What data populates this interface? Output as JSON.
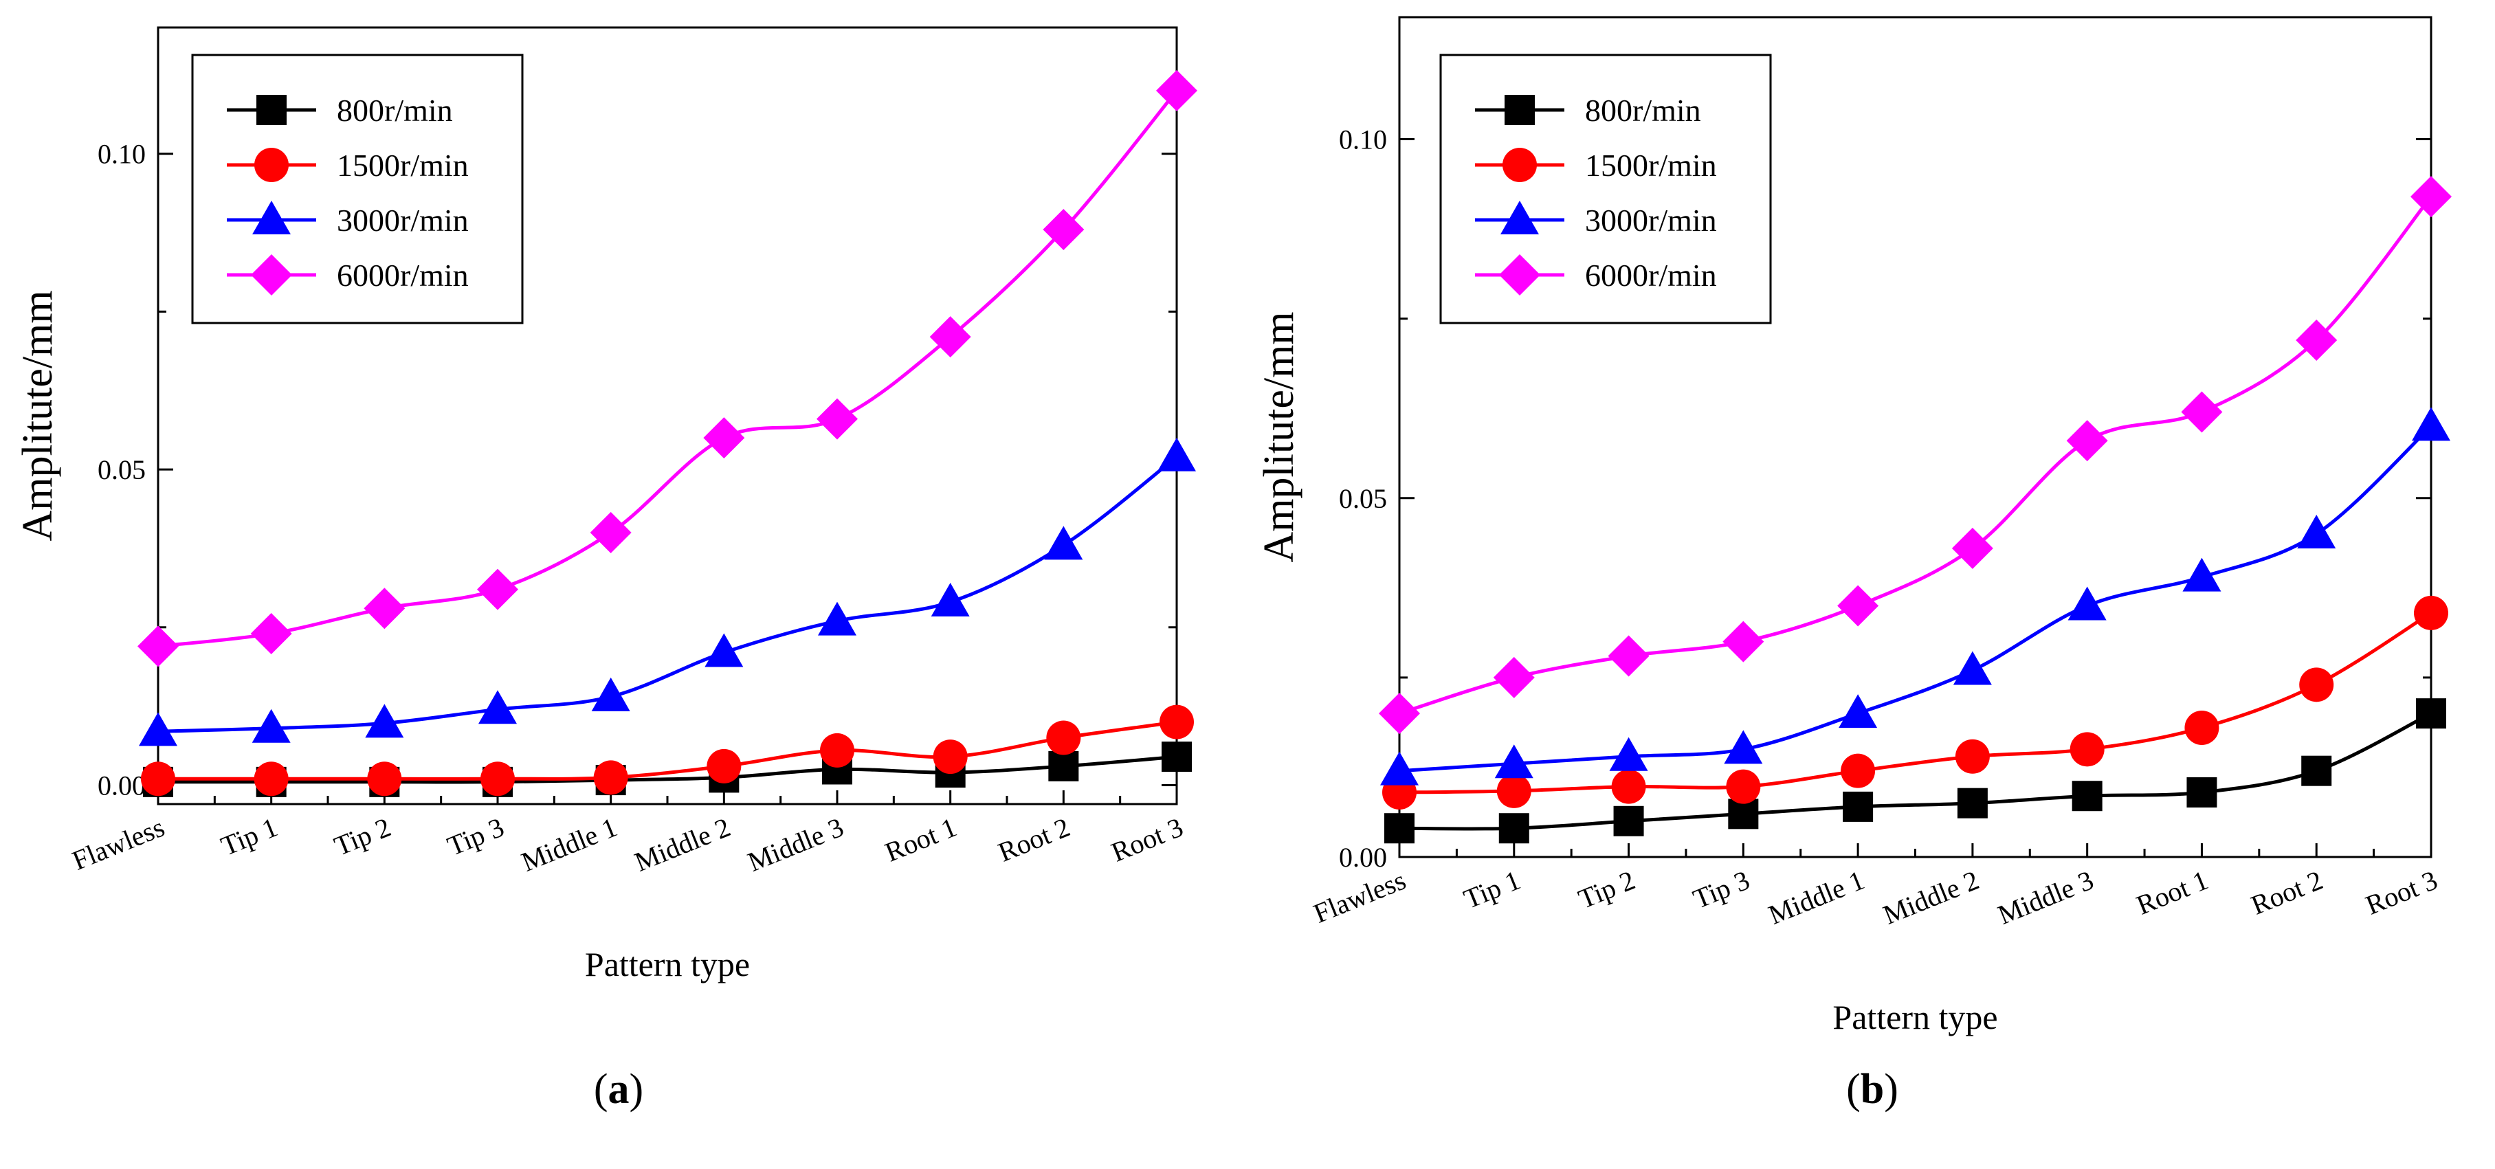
{
  "chart_data": [
    {
      "id": "a",
      "type": "line",
      "panel_label": "a",
      "xlabel": "Pattern type",
      "ylabel": "Amplitute/mm",
      "categories": [
        "Flawless",
        "Tip 1",
        "Tip 2",
        "Tip 3",
        "Middle 1",
        "Middle 2",
        "Middle 3",
        "Root 1",
        "Root 2",
        "Root 3"
      ],
      "ylim": [
        -0.003,
        0.12
      ],
      "yticks": [
        0.0,
        0.05,
        0.1
      ],
      "ytick_labels": [
        "0.00",
        "0.05",
        "0.10"
      ],
      "legend_position": "top-left",
      "series": [
        {
          "name": "800r/min",
          "color": "#000000",
          "marker": "square",
          "values": [
            0.0005,
            0.0005,
            0.0005,
            0.0005,
            0.0008,
            0.0012,
            0.0025,
            0.002,
            0.003,
            0.0045
          ]
        },
        {
          "name": "1500r/min",
          "color": "#ff0000",
          "marker": "circle",
          "values": [
            0.001,
            0.001,
            0.001,
            0.001,
            0.0012,
            0.003,
            0.0055,
            0.0045,
            0.0075,
            0.01
          ]
        },
        {
          "name": "3000r/min",
          "color": "#0000ff",
          "marker": "triangle",
          "values": [
            0.0085,
            0.009,
            0.0098,
            0.012,
            0.014,
            0.021,
            0.026,
            0.029,
            0.038,
            0.052
          ]
        },
        {
          "name": "6000r/min",
          "color": "#ff00ff",
          "marker": "diamond",
          "values": [
            0.022,
            0.024,
            0.028,
            0.031,
            0.04,
            0.055,
            0.058,
            0.071,
            0.088,
            0.11
          ]
        }
      ]
    },
    {
      "id": "b",
      "type": "line",
      "panel_label": "b",
      "xlabel": "Pattern type",
      "ylabel": "Amplitute/mm",
      "categories": [
        "Flawless",
        "Tip 1",
        "Tip 2",
        "Tip 3",
        "Middle 1",
        "Middle 2",
        "Middle 3",
        "Root 1",
        "Root 2",
        "Root 3"
      ],
      "ylim": [
        0.0,
        0.117
      ],
      "yticks": [
        0.0,
        0.05,
        0.1
      ],
      "ytick_labels": [
        "0.00",
        "0.05",
        "0.10"
      ],
      "legend_position": "top-left",
      "series": [
        {
          "name": "800r/min",
          "color": "#000000",
          "marker": "square",
          "values": [
            0.004,
            0.004,
            0.005,
            0.006,
            0.007,
            0.0075,
            0.0085,
            0.009,
            0.012,
            0.02
          ]
        },
        {
          "name": "1500r/min",
          "color": "#ff0000",
          "marker": "circle",
          "values": [
            0.009,
            0.0092,
            0.0098,
            0.0098,
            0.012,
            0.014,
            0.015,
            0.018,
            0.024,
            0.034
          ]
        },
        {
          "name": "3000r/min",
          "color": "#0000ff",
          "marker": "triangle",
          "values": [
            0.012,
            0.013,
            0.014,
            0.015,
            0.02,
            0.026,
            0.035,
            0.039,
            0.045,
            0.06
          ]
        },
        {
          "name": "6000r/min",
          "color": "#ff00ff",
          "marker": "diamond",
          "values": [
            0.02,
            0.025,
            0.028,
            0.03,
            0.035,
            0.043,
            0.058,
            0.062,
            0.072,
            0.092
          ]
        }
      ]
    }
  ]
}
